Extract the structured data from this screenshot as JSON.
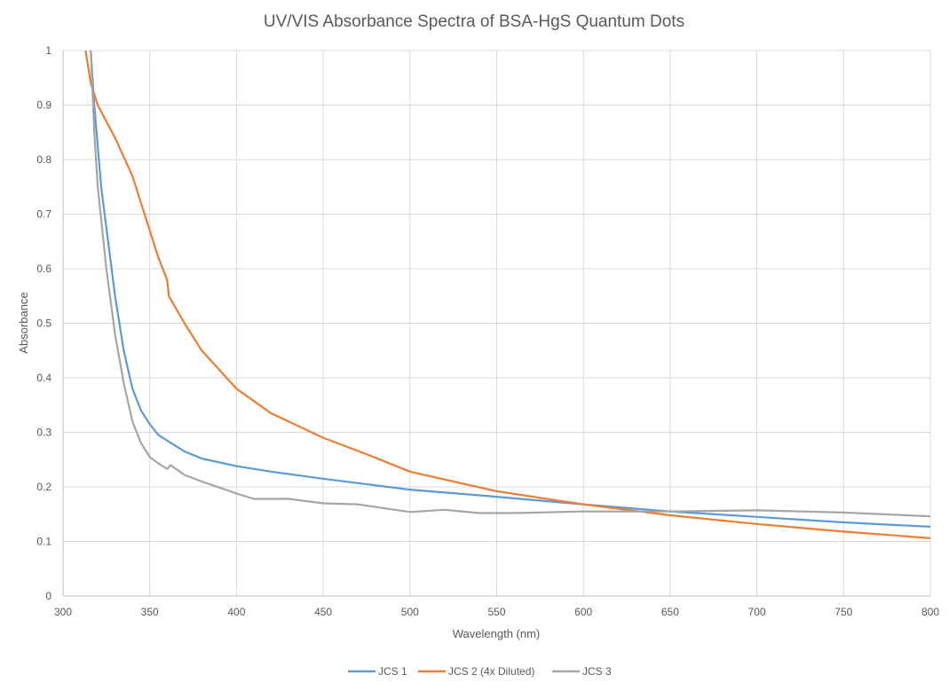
{
  "chart_data": {
    "type": "line",
    "title": "UV/VIS Absorbance Spectra of BSA-HgS Quantum Dots",
    "xlabel": "Wavelength (nm)",
    "ylabel": "Absorbance",
    "xlim": [
      300,
      800
    ],
    "ylim": [
      0,
      1
    ],
    "xticks": [
      "300",
      "350",
      "400",
      "450",
      "500",
      "550",
      "600",
      "650",
      "700",
      "750",
      "800"
    ],
    "yticks": [
      "0",
      "0.1",
      "0.2",
      "0.3",
      "0.4",
      "0.5",
      "0.6",
      "0.7",
      "0.8",
      "0.9",
      "1"
    ],
    "grid": true,
    "legend_position": "bottom",
    "series": [
      {
        "name": "JCS 1",
        "color": "#5B9BD5",
        "x": [
          316,
          318,
          322,
          326,
          330,
          335,
          340,
          345,
          350,
          355,
          360,
          370,
          380,
          400,
          420,
          450,
          500,
          550,
          600,
          650,
          700,
          750,
          800
        ],
        "y": [
          1.0,
          0.9,
          0.75,
          0.65,
          0.55,
          0.45,
          0.38,
          0.34,
          0.315,
          0.295,
          0.285,
          0.265,
          0.252,
          0.238,
          0.228,
          0.215,
          0.195,
          0.182,
          0.168,
          0.155,
          0.145,
          0.135,
          0.127
        ]
      },
      {
        "name": "JCS 2 (4x Diluted)",
        "color": "#ED7D31",
        "x": [
          313,
          316,
          320,
          330,
          340,
          350,
          355,
          360,
          361,
          370,
          380,
          400,
          420,
          450,
          475,
          500,
          525,
          550,
          575,
          600,
          625,
          650,
          700,
          750,
          800
        ],
        "y": [
          1.0,
          0.94,
          0.9,
          0.84,
          0.77,
          0.67,
          0.62,
          0.58,
          0.55,
          0.5,
          0.45,
          0.38,
          0.335,
          0.29,
          0.26,
          0.228,
          0.21,
          0.192,
          0.18,
          0.168,
          0.158,
          0.148,
          0.132,
          0.118,
          0.106
        ]
      },
      {
        "name": "JCS 3",
        "color": "#A5A5A5",
        "x": [
          316,
          318,
          320,
          325,
          330,
          335,
          340,
          345,
          350,
          355,
          360,
          362,
          370,
          380,
          400,
          410,
          430,
          450,
          470,
          500,
          520,
          540,
          560,
          600,
          650,
          700,
          750,
          800
        ],
        "y": [
          1.0,
          0.85,
          0.75,
          0.6,
          0.48,
          0.39,
          0.32,
          0.28,
          0.255,
          0.243,
          0.233,
          0.24,
          0.222,
          0.21,
          0.188,
          0.178,
          0.178,
          0.17,
          0.168,
          0.154,
          0.158,
          0.152,
          0.152,
          0.155,
          0.155,
          0.157,
          0.153,
          0.146
        ]
      }
    ]
  }
}
